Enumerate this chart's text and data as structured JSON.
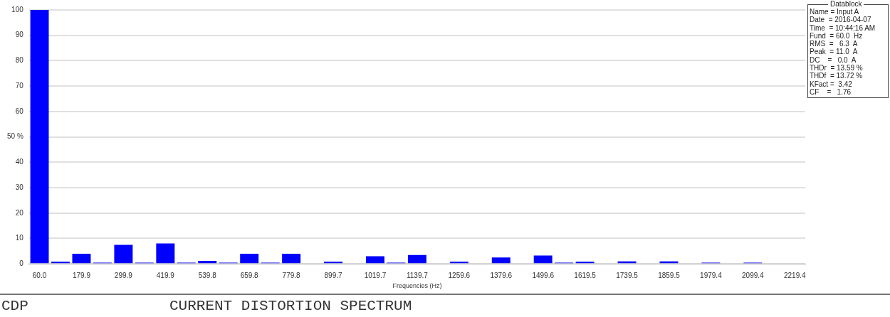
{
  "chart_data": {
    "type": "bar",
    "title": "CURRENT DISTORTION SPECTRUM",
    "xlabel": "Frequencies (Hz)",
    "categories": [
      "60.0",
      null,
      "179.9",
      null,
      "299.9",
      null,
      "419.9",
      null,
      "539.8",
      null,
      "659.8",
      null,
      "779.8",
      null,
      "899.7",
      null,
      "1019.7",
      null,
      "1139.7",
      null,
      "1259.6",
      null,
      "1379.6",
      null,
      "1499.6",
      null,
      "1619.5",
      null,
      "1739.5",
      null,
      "1859.5",
      null,
      "1979.4",
      null,
      "2099.4",
      null,
      "2219.4"
    ],
    "values": [
      100,
      0.8,
      4,
      0.5,
      7.5,
      0.5,
      8,
      0.5,
      1.2,
      0.5,
      4,
      0.5,
      4,
      0,
      0.8,
      0,
      3,
      0.5,
      3.5,
      0,
      0.8,
      0,
      2.5,
      0,
      3.3,
      0.5,
      0.8,
      0,
      1,
      0,
      1,
      0,
      0.5,
      0,
      0.5,
      0,
      0
    ],
    "color": "#0000ff",
    "ylim": [
      0,
      100
    ],
    "yticks": [
      0,
      10,
      20,
      30,
      40,
      {
        "value": 50,
        "label": "50 %"
      },
      60,
      70,
      80,
      90,
      100
    ],
    "grid": "y",
    "annotations": [
      "CDP",
      "Datablock",
      "Name = Input A",
      "Date  = 2016-04-07",
      "Time  = 10:44:16 AM",
      "Fund  = 60.0  Hz",
      "RMS  =   6.3  A",
      "Peak  = 11.0  A",
      "DC    =   0.0  A",
      "THDr  = 13.59 %",
      "THDf  = 13.72 %",
      "KFact =  3.42",
      "CF    =   1.76"
    ]
  }
}
